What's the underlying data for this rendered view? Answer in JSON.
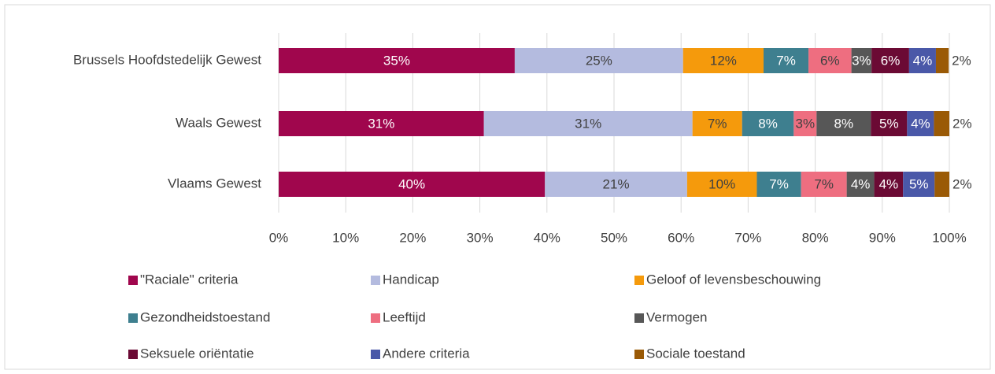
{
  "chart_data": {
    "type": "bar",
    "orientation": "horizontal",
    "stacked": true,
    "categories": [
      "Brussels Hoofdstedelijk Gewest",
      "Waals Gewest",
      "Vlaams Gewest"
    ],
    "series": [
      {
        "name": "\"Raciale\" criteria",
        "color": "#a0064d",
        "values": [
          35.2,
          30.6,
          39.7
        ],
        "value_labels": [
          "35%",
          "31%",
          "40%"
        ]
      },
      {
        "name": "Handicap",
        "color": "#b4bbdf",
        "values": [
          25.1,
          31.1,
          21.2
        ],
        "value_labels": [
          "25%",
          "31%",
          "21%"
        ]
      },
      {
        "name": "Geloof of levensbeschouwing",
        "color": "#f59a0c",
        "values": [
          12.0,
          7.4,
          10.4
        ],
        "value_labels": [
          "12%",
          "7%",
          "10%"
        ]
      },
      {
        "name": "Gezondheidstoestand",
        "color": "#3e7f8f",
        "values": [
          6.7,
          7.7,
          6.6
        ],
        "value_labels": [
          "7%",
          "8%",
          "7%"
        ]
      },
      {
        "name": "Leeftijd",
        "color": "#ee6e80",
        "values": [
          6.4,
          3.4,
          6.8
        ],
        "value_labels": [
          "6%",
          "3%",
          "7%"
        ]
      },
      {
        "name": "Vermogen",
        "color": "#575757",
        "values": [
          3.0,
          8.1,
          4.1
        ],
        "value_labels": [
          "3%",
          "8%",
          "4%"
        ]
      },
      {
        "name": "Seksuele oriëntatie",
        "color": "#6b0a34",
        "values": [
          5.6,
          5.4,
          4.3
        ],
        "value_labels": [
          "6%",
          "5%",
          "4%"
        ]
      },
      {
        "name": "Andere criteria",
        "color": "#4a58a8",
        "values": [
          4.0,
          4.0,
          4.7
        ],
        "value_labels": [
          "4%",
          "4%",
          "5%"
        ]
      },
      {
        "name": "Sociale toestand",
        "color": "#9a5a06",
        "values": [
          1.9,
          2.3,
          2.2
        ],
        "value_labels": [
          "2%",
          "2%",
          "2%"
        ]
      }
    ],
    "xlim": [
      0,
      100
    ],
    "xticks": [
      {
        "value": 0,
        "label": "0%"
      },
      {
        "value": 10,
        "label": "10%"
      },
      {
        "value": 20,
        "label": "20%"
      },
      {
        "value": 30,
        "label": "30%"
      },
      {
        "value": 40,
        "label": "40%"
      },
      {
        "value": 50,
        "label": "50%"
      },
      {
        "value": 60,
        "label": "60%"
      },
      {
        "value": 70,
        "label": "70%"
      },
      {
        "value": 80,
        "label": "80%"
      },
      {
        "value": 90,
        "label": "90%"
      },
      {
        "value": 100,
        "label": "100%"
      }
    ],
    "grid": true,
    "legend": "bottom"
  }
}
